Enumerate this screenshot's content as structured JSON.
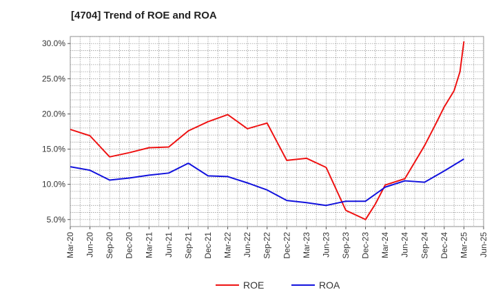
{
  "chart_data": {
    "type": "line",
    "title": "[4704]  Trend of ROE and ROA",
    "xlabel": "",
    "ylabel": "",
    "x": [
      "Mar-20",
      "Jun-20",
      "Sep-20",
      "Dec-20",
      "Mar-21",
      "Jun-21",
      "Sep-21",
      "Dec-21",
      "Mar-22",
      "Jun-22",
      "Sep-22",
      "Dec-22",
      "Mar-23",
      "Jun-23",
      "Sep-23",
      "Dec-23",
      "Mar-24",
      "Jun-24",
      "Sep-24",
      "Dec-24",
      "Mar-25",
      "Jun-25"
    ],
    "yticks": [
      "5.0%",
      "10.0%",
      "15.0%",
      "20.0%",
      "25.0%",
      "30.0%"
    ],
    "ylim": [
      4.0,
      31.0
    ],
    "grid": true,
    "legend_position": "bottom-center",
    "series": [
      {
        "name": "ROE",
        "color": "#ee1111",
        "points": [
          [
            0,
            17.8
          ],
          [
            1,
            16.9
          ],
          [
            2,
            13.9
          ],
          [
            3,
            14.5
          ],
          [
            4,
            15.2
          ],
          [
            5,
            15.3
          ],
          [
            6,
            17.6
          ],
          [
            7,
            18.9
          ],
          [
            8,
            19.9
          ],
          [
            9,
            17.9
          ],
          [
            10,
            18.7
          ],
          [
            11,
            13.4
          ],
          [
            12,
            13.7
          ],
          [
            13,
            12.4
          ],
          [
            14,
            6.3
          ],
          [
            15,
            5.0
          ],
          [
            15.5,
            7.2
          ],
          [
            16,
            9.9
          ],
          [
            17,
            10.8
          ],
          [
            18,
            15.5
          ],
          [
            18.5,
            18.2
          ],
          [
            19,
            21.0
          ],
          [
            19.5,
            23.3
          ],
          [
            19.8,
            26.0
          ],
          [
            20,
            30.3
          ]
        ]
      },
      {
        "name": "ROA",
        "color": "#1111dd",
        "points": [
          [
            0,
            12.5
          ],
          [
            1,
            12.0
          ],
          [
            2,
            10.6
          ],
          [
            3,
            10.9
          ],
          [
            4,
            11.3
          ],
          [
            5,
            11.6
          ],
          [
            6,
            13.0
          ],
          [
            7,
            11.2
          ],
          [
            8,
            11.1
          ],
          [
            9,
            10.2
          ],
          [
            10,
            9.2
          ],
          [
            11,
            7.7
          ],
          [
            12,
            7.4
          ],
          [
            13,
            7.0
          ],
          [
            14,
            7.6
          ],
          [
            15,
            7.6
          ],
          [
            16,
            9.6
          ],
          [
            17,
            10.5
          ],
          [
            18,
            10.3
          ],
          [
            19,
            11.9
          ],
          [
            20,
            13.6
          ]
        ]
      }
    ]
  }
}
